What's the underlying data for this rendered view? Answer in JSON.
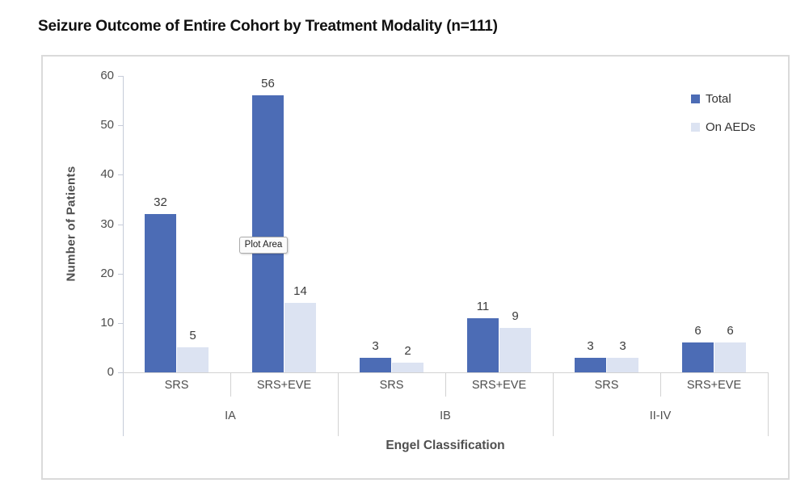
{
  "chart_data": {
    "type": "bar",
    "title": "Seizure Outcome of Entire Cohort by Treatment Modality (n=111)",
    "xlabel": "Engel Classification",
    "ylabel": "Number of Patients",
    "ylim": [
      0,
      60
    ],
    "yticks": [
      0,
      10,
      20,
      30,
      40,
      50,
      60
    ],
    "grid": false,
    "legend_position": "upper-right",
    "groups": [
      "IA",
      "IB",
      "II-IV"
    ],
    "categories": [
      {
        "group": "IA",
        "treatment": "SRS"
      },
      {
        "group": "IA",
        "treatment": "SRS+EVE"
      },
      {
        "group": "IB",
        "treatment": "SRS"
      },
      {
        "group": "IB",
        "treatment": "SRS+EVE"
      },
      {
        "group": "II-IV",
        "treatment": "SRS"
      },
      {
        "group": "II-IV",
        "treatment": "SRS+EVE"
      }
    ],
    "series": [
      {
        "name": "Total",
        "color": "#4C6CB5",
        "values": [
          32,
          56,
          3,
          11,
          3,
          6
        ]
      },
      {
        "name": "On AEDs",
        "color": "#DCE3F2",
        "values": [
          5,
          14,
          2,
          9,
          3,
          6
        ]
      }
    ]
  },
  "tooltip": {
    "text": "Plot Area"
  },
  "colors": {
    "total": "#4C6CB5",
    "on_aeds": "#DCE3F2",
    "y_axis_line": "#c6ccd9",
    "x_axis_line": "#d2d2d2",
    "frame_border": "#dadada"
  }
}
